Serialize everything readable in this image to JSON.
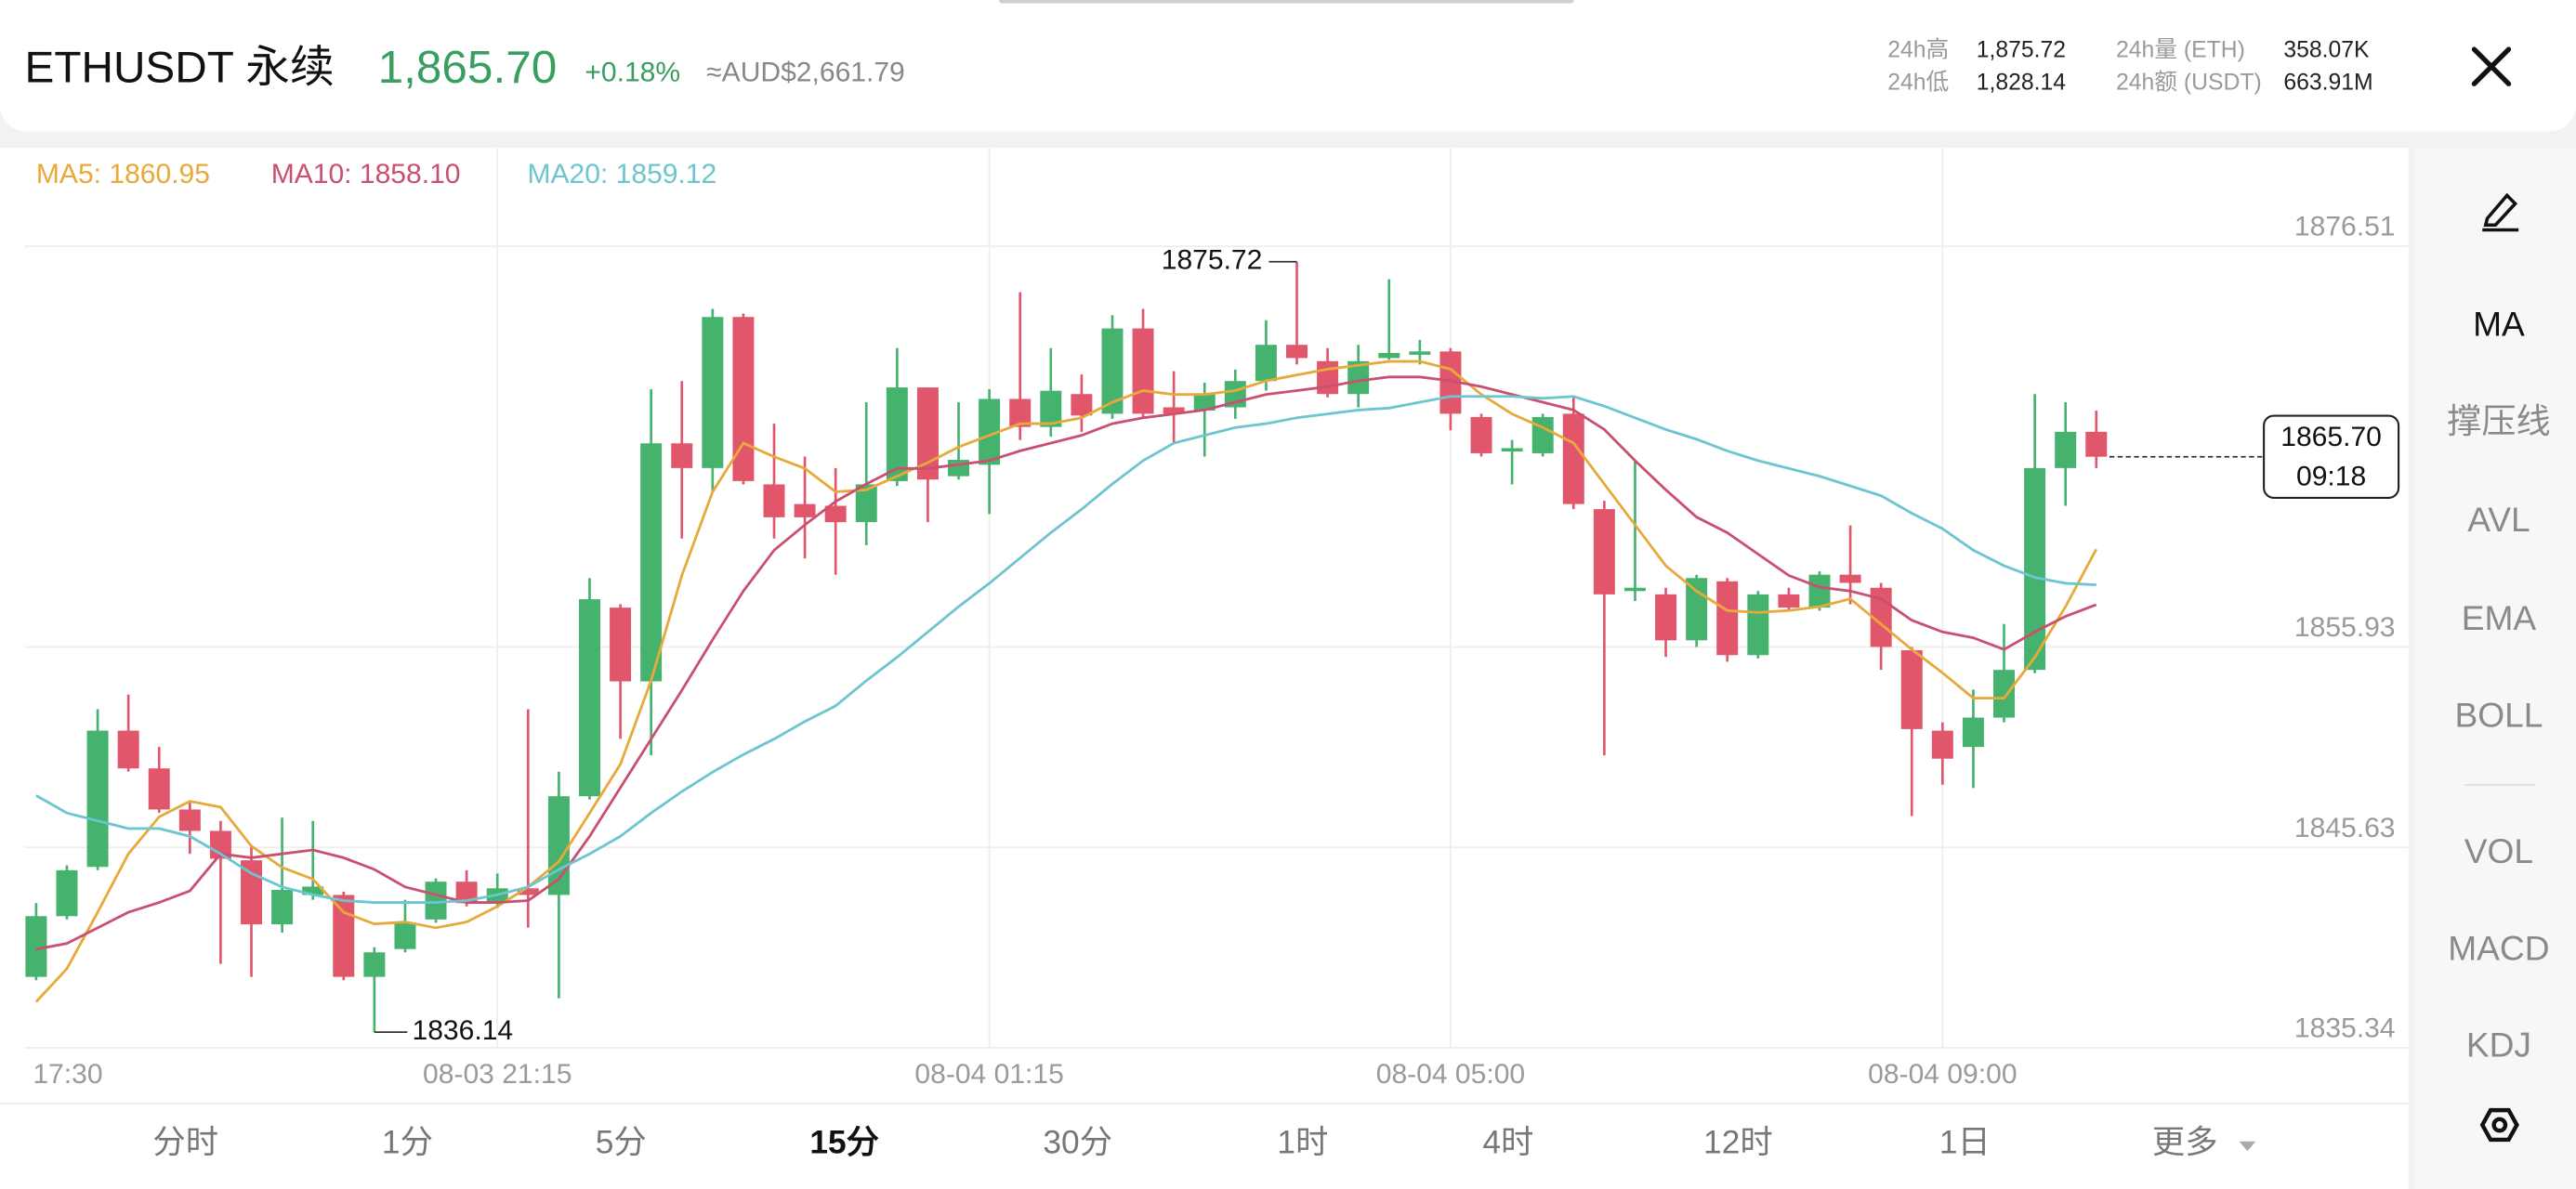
{
  "header": {
    "symbol": "ETHUSDT 永续",
    "price": "1,865.70",
    "change": "+0.18%",
    "fiat": "≈AUD$2,661.79",
    "stats": [
      {
        "label": "24h高",
        "value": "1,875.72"
      },
      {
        "label": "24h低",
        "value": "1,828.14"
      },
      {
        "label": "24h量 (ETH)",
        "value": "358.07K"
      },
      {
        "label": "24h额 (USDT)",
        "value": "663.91M"
      }
    ]
  },
  "sidebar": [
    "MA",
    "撑压线",
    "AVL",
    "EMA",
    "BOLL",
    "VOL",
    "MACD",
    "KDJ"
  ],
  "intervals": [
    "分时",
    "1分",
    "5分",
    "15分",
    "30分",
    "1时",
    "4时",
    "12时",
    "1日",
    "更多"
  ],
  "chart_data": {
    "type": "candlestick",
    "categories": [
      "17:30",
      null,
      null,
      null,
      null,
      null,
      null,
      null,
      null,
      null,
      null,
      null,
      null,
      null,
      null,
      "08-03 21:15",
      null,
      null,
      null,
      null,
      null,
      null,
      null,
      null,
      null,
      null,
      null,
      null,
      null,
      null,
      null,
      "08-04 01:15",
      null,
      null,
      null,
      null,
      null,
      null,
      null,
      null,
      null,
      null,
      null,
      null,
      null,
      null,
      "08-04 05:00",
      null,
      null,
      null,
      null,
      null,
      null,
      null,
      null,
      null,
      null,
      null,
      null,
      null,
      null,
      null,
      "08-04 09:00",
      null,
      null,
      null,
      null,
      null
    ],
    "open": [
      1838.98,
      1842.1,
      1844.63,
      1851.63,
      1849.69,
      1847.58,
      1846.48,
      1844.97,
      1841.68,
      1843.19,
      1843.19,
      1838.98,
      1840.41,
      1841.93,
      1843.87,
      1842.77,
      1843.53,
      1843.19,
      1848.26,
      1857.95,
      1854.16,
      1866.39,
      1865.12,
      1872.88,
      1864.28,
      1863.27,
      1863.18,
      1862.34,
      1864.45,
      1869.26,
      1864.7,
      1865.29,
      1868.67,
      1867.23,
      1868.92,
      1867.91,
      1872.29,
      1868.24,
      1868.07,
      1868.24,
      1869.59,
      1871.45,
      1870.61,
      1868.92,
      1870.77,
      1870.94,
      1871.11,
      1867.74,
      1865.97,
      1865.88,
      1867.91,
      1863.01,
      1858.8,
      1858.63,
      1856.27,
      1859.3,
      1855.51,
      1858.63,
      1857.95,
      1859.64,
      1858.97,
      1855.76,
      1851.63,
      1850.79,
      1852.3,
      1854.75,
      1865.12,
      1866.98
    ],
    "high": [
      1842.77,
      1844.71,
      1852.73,
      1853.48,
      1850.79,
      1848.0,
      1846.99,
      1845.72,
      1847.16,
      1846.99,
      1843.36,
      1840.5,
      1842.94,
      1844.04,
      1844.46,
      1844.29,
      1852.73,
      1849.52,
      1859.47,
      1858.12,
      1869.17,
      1869.59,
      1873.3,
      1873.05,
      1867.4,
      1865.71,
      1865.12,
      1868.5,
      1871.28,
      1869.26,
      1868.5,
      1869.17,
      1874.15,
      1871.28,
      1869.93,
      1872.97,
      1873.3,
      1870.1,
      1869.51,
      1870.18,
      1872.71,
      1875.72,
      1871.28,
      1871.45,
      1874.82,
      1871.7,
      1871.28,
      1867.91,
      1866.56,
      1867.91,
      1868.75,
      1863.44,
      1865.54,
      1858.97,
      1859.64,
      1859.47,
      1858.8,
      1858.97,
      1859.81,
      1862.17,
      1859.22,
      1855.93,
      1852.05,
      1853.74,
      1857.11,
      1868.92,
      1868.5,
      1868.07
    ],
    "low": [
      1838.81,
      1841.93,
      1844.46,
      1849.52,
      1847.41,
      1845.3,
      1839.65,
      1838.98,
      1841.25,
      1842.94,
      1838.81,
      1836.14,
      1840.24,
      1841.76,
      1842.6,
      1842.52,
      1841.51,
      1837.88,
      1848.09,
      1851.21,
      1850.36,
      1861.5,
      1863.86,
      1864.28,
      1861.5,
      1860.48,
      1859.64,
      1861.16,
      1864.2,
      1862.34,
      1864.53,
      1862.76,
      1866.56,
      1866.73,
      1866.98,
      1867.65,
      1867.65,
      1866.39,
      1865.71,
      1867.65,
      1869.09,
      1870.44,
      1868.75,
      1868.24,
      1870.69,
      1870.44,
      1867.06,
      1865.71,
      1864.28,
      1865.71,
      1863.01,
      1850.36,
      1858.29,
      1855.42,
      1855.93,
      1855.17,
      1855.34,
      1857.79,
      1857.79,
      1858.12,
      1854.75,
      1847.24,
      1848.85,
      1848.68,
      1852.05,
      1854.58,
      1863.18,
      1865.12
    ],
    "close": [
      1842.1,
      1844.46,
      1851.63,
      1849.69,
      1847.58,
      1846.48,
      1845.05,
      1841.68,
      1843.45,
      1843.62,
      1838.98,
      1840.24,
      1841.76,
      1843.87,
      1842.77,
      1843.53,
      1843.19,
      1848.26,
      1858.38,
      1854.16,
      1866.39,
      1865.12,
      1872.88,
      1864.45,
      1862.59,
      1862.59,
      1862.34,
      1864.28,
      1869.26,
      1864.53,
      1865.54,
      1868.67,
      1867.23,
      1869.09,
      1867.82,
      1872.29,
      1867.91,
      1867.91,
      1868.92,
      1869.59,
      1871.45,
      1870.77,
      1868.92,
      1870.61,
      1871.03,
      1871.11,
      1867.91,
      1865.88,
      1866.14,
      1867.74,
      1863.27,
      1858.63,
      1858.97,
      1856.27,
      1859.47,
      1855.51,
      1858.63,
      1857.95,
      1859.64,
      1859.22,
      1855.93,
      1851.71,
      1850.19,
      1852.3,
      1854.75,
      1865.12,
      1866.98,
      1865.7
    ],
    "up_color": "#45b26e",
    "down_color": "#e2566b",
    "series": [
      {
        "name": "MA5: 1860.95",
        "color": "#e8a93b",
        "values": [
          1837.7,
          1839.4,
          1842.3,
          1845.3,
          1847.2,
          1848.0,
          1847.7,
          1845.7,
          1844.6,
          1844.0,
          1842.3,
          1841.7,
          1841.8,
          1841.5,
          1841.8,
          1842.6,
          1843.6,
          1844.9,
          1847.4,
          1849.9,
          1854.2,
          1859.6,
          1863.9,
          1866.4,
          1865.7,
          1865.1,
          1863.9,
          1864.0,
          1864.7,
          1865.4,
          1866.2,
          1866.8,
          1867.4,
          1867.4,
          1867.7,
          1868.5,
          1869.1,
          1868.9,
          1868.9,
          1869.1,
          1869.6,
          1869.9,
          1870.2,
          1870.4,
          1870.6,
          1870.6,
          1870.2,
          1868.9,
          1867.9,
          1867.2,
          1866.4,
          1864.3,
          1862.2,
          1860.1,
          1858.8,
          1857.8,
          1857.7,
          1857.8,
          1858.0,
          1858.4,
          1857.1,
          1855.8,
          1854.6,
          1853.3,
          1853.3,
          1855.4,
          1858.0,
          1860.95
        ]
      },
      {
        "name": "MA10: 1858.10",
        "color": "#c9506e",
        "values": [
          1840.4,
          1840.7,
          1841.5,
          1842.3,
          1842.8,
          1843.4,
          1845.3,
          1845.1,
          1845.3,
          1845.5,
          1845.1,
          1844.5,
          1843.6,
          1843.2,
          1842.8,
          1842.8,
          1842.9,
          1844.0,
          1846.2,
          1848.7,
          1851.2,
          1853.7,
          1856.3,
          1858.8,
          1860.9,
          1862.2,
          1863.4,
          1864.3,
          1865.1,
          1865.1,
          1865.3,
          1865.5,
          1866.0,
          1866.4,
          1866.8,
          1867.4,
          1867.7,
          1867.9,
          1868.1,
          1868.5,
          1868.9,
          1869.1,
          1869.3,
          1869.6,
          1869.8,
          1869.8,
          1869.6,
          1869.3,
          1868.9,
          1868.5,
          1868.1,
          1867.1,
          1865.5,
          1864.0,
          1862.6,
          1861.8,
          1860.7,
          1859.6,
          1859.0,
          1858.8,
          1858.4,
          1857.3,
          1856.7,
          1856.4,
          1855.8,
          1856.7,
          1857.5,
          1858.1
        ]
      },
      {
        "name": "MA20: 1859.12",
        "color": "#6cc5cf",
        "values": [
          1848.3,
          1847.4,
          1847.0,
          1846.6,
          1846.6,
          1846.2,
          1845.3,
          1844.3,
          1843.6,
          1843.2,
          1842.9,
          1842.8,
          1842.8,
          1842.8,
          1842.9,
          1843.2,
          1843.6,
          1844.5,
          1845.3,
          1846.2,
          1847.4,
          1848.5,
          1849.5,
          1850.4,
          1851.2,
          1852.1,
          1852.9,
          1854.2,
          1855.4,
          1856.7,
          1858.0,
          1859.2,
          1860.5,
          1861.8,
          1863.0,
          1864.3,
          1865.5,
          1866.4,
          1866.8,
          1867.2,
          1867.4,
          1867.7,
          1867.9,
          1868.1,
          1868.2,
          1868.5,
          1868.8,
          1868.8,
          1868.8,
          1868.7,
          1868.8,
          1868.3,
          1867.7,
          1867.1,
          1866.6,
          1866.0,
          1865.5,
          1865.1,
          1864.7,
          1864.2,
          1863.7,
          1862.8,
          1862.0,
          1860.9,
          1860.1,
          1859.5,
          1859.2,
          1859.12
        ]
      }
    ],
    "ylim": [
      1835.34,
      1881.57
    ],
    "yticks": [
      1835.34,
      1845.63,
      1855.93,
      1876.51
    ],
    "grid": true,
    "last_price_label": "1865.70",
    "countdown": "09:18"
  }
}
